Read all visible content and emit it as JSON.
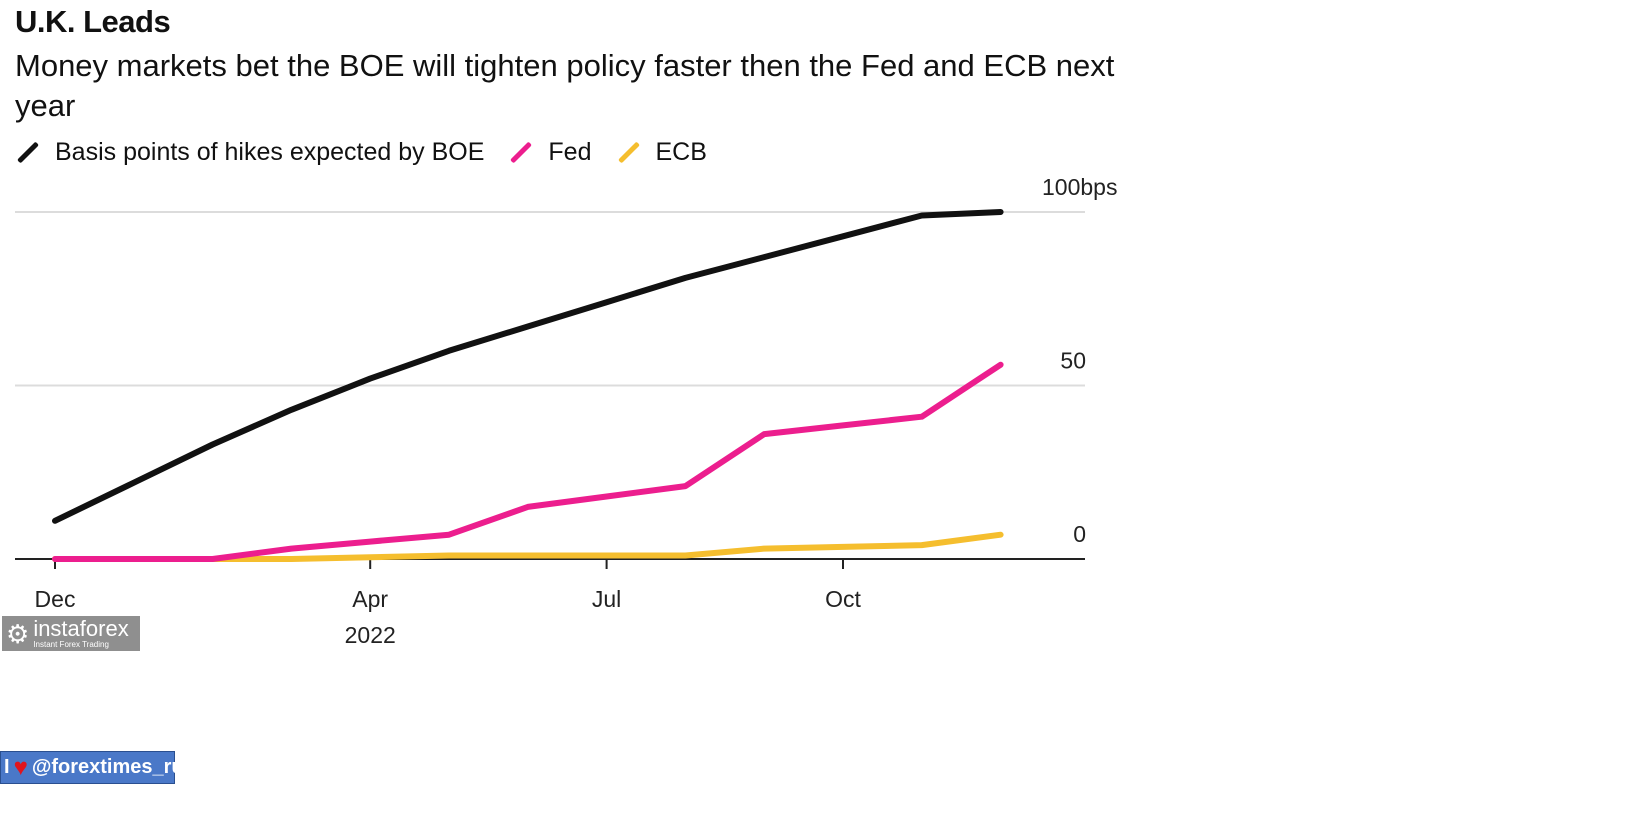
{
  "header": {
    "title": "U.K. Leads",
    "subtitle": "Money markets bet the BOE will tighten policy faster then the Fed and ECB next year"
  },
  "legend": [
    {
      "label": "Basis points of hikes expected by BOE",
      "color": "#111111"
    },
    {
      "label": "Fed",
      "color": "#ec1e8e"
    },
    {
      "label": "ECB",
      "color": "#f5be2e"
    }
  ],
  "watermark": {
    "icon": "gear-logo-icon",
    "brand": "instaforex",
    "tagline": "Instant Forex Trading"
  },
  "badge": {
    "prefix": "I",
    "icon": "heart-icon",
    "handle": "@forextimes_ru"
  },
  "chart_data": {
    "type": "line",
    "title": "U.K. Leads",
    "subtitle": "Money markets bet the BOE will tighten policy faster then the Fed and ECB next year",
    "xlabel": "",
    "ylabel": "",
    "x_ticks": [
      {
        "label": "Dec",
        "x": 0
      },
      {
        "label": "Apr",
        "x": 4
      },
      {
        "label": "Jul",
        "x": 7
      },
      {
        "label": "Oct",
        "x": 10
      }
    ],
    "x_year_label": {
      "label": "2022",
      "x": 4
    },
    "xlim": [
      -0.5,
      13.2
    ],
    "y_ticks": [
      {
        "label": "100bps",
        "value": 100
      },
      {
        "label": "50",
        "value": 50
      },
      {
        "label": "0",
        "value": 0
      }
    ],
    "ylim": [
      0,
      100
    ],
    "grid": true,
    "legend_position": "top-left",
    "series": [
      {
        "name": "Basis points of hikes expected by BOE",
        "color": "#111111",
        "x": [
          0,
          1,
          2,
          3,
          4,
          5,
          6,
          7,
          8,
          9,
          10,
          11,
          12
        ],
        "values": [
          11,
          22,
          33,
          43,
          52,
          60,
          67,
          74,
          81,
          87,
          93,
          99,
          100
        ]
      },
      {
        "name": "Fed",
        "color": "#ec1e8e",
        "x": [
          0,
          1,
          2,
          3,
          4,
          5,
          6,
          7,
          8,
          9,
          10,
          11,
          12
        ],
        "values": [
          0,
          0,
          0,
          3,
          5,
          7,
          15,
          18,
          21,
          36,
          38.5,
          41,
          56
        ]
      },
      {
        "name": "ECB",
        "color": "#f5be2e",
        "x": [
          0,
          1,
          2,
          3,
          4,
          5,
          6,
          7,
          8,
          9,
          10,
          11,
          12
        ],
        "values": [
          0,
          0,
          0,
          0,
          0.5,
          1,
          1,
          1,
          1,
          3,
          3.5,
          4,
          7
        ]
      }
    ]
  }
}
